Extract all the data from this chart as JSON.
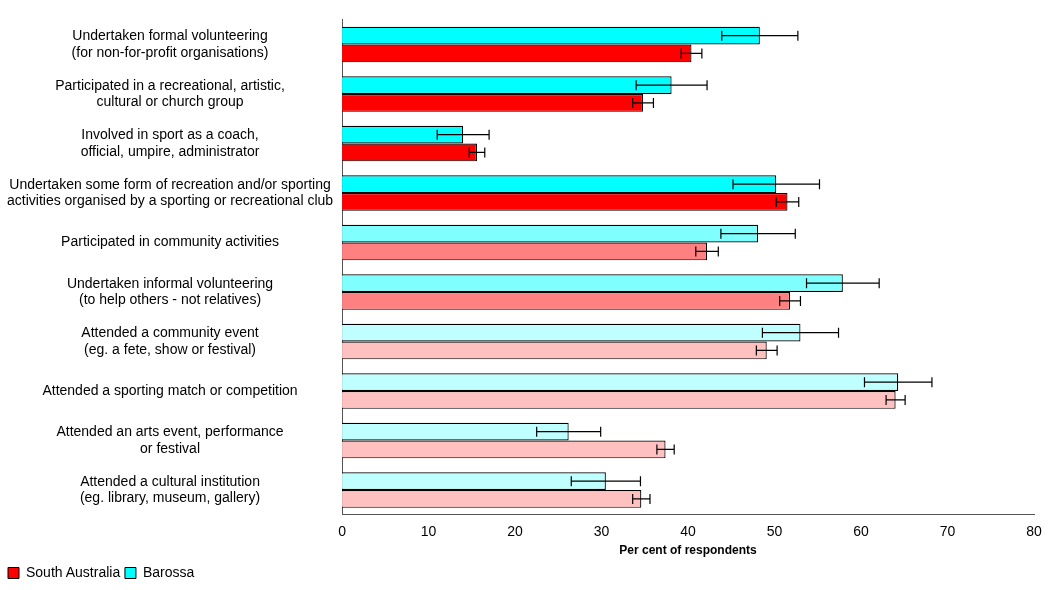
{
  "chart_data": {
    "type": "bar",
    "orientation": "horizontal",
    "xlabel": "Per cent of respondents",
    "categories": [
      "Undertaken formal volunteering\n(for non-for-profit organisations)",
      "Participated in a recreational, artistic,\ncultural or church group",
      "Involved in sport as a coach,\nofficial, umpire, administrator",
      "Undertaken some form of recreation and/or sporting\nactivities organised by a sporting or recreational club",
      "Participated in community activities",
      "Undertaken informal volunteering\n(to help others - not relatives)",
      "Attended a community event\n(eg. a fete, show or festival)",
      "Attended a sporting match or competition",
      "Attended an arts event, performance\nor festival",
      "Attended a cultural institution\n(eg. library, museum, gallery)"
    ],
    "series": [
      {
        "name": "Barossa",
        "color": "#00ffff",
        "colors": [
          "#00ffff",
          "#00ffff",
          "#00ffff",
          "#00ffff",
          "#80ffff",
          "#80ffff",
          "#c0ffff",
          "#c0ffff",
          "#c0ffff",
          "#c0ffff"
        ],
        "values": [
          48.3,
          38.1,
          14.0,
          50.2,
          48.1,
          57.9,
          53.0,
          64.3,
          26.2,
          30.5
        ],
        "errors": [
          4.4,
          4.1,
          3.0,
          5.0,
          4.3,
          4.2,
          4.4,
          3.9,
          3.7,
          4.0
        ]
      },
      {
        "name": "South Australia",
        "color": "#ff0000",
        "colors": [
          "#ff0000",
          "#ff0000",
          "#ff0000",
          "#ff0000",
          "#ff8080",
          "#ff8080",
          "#ffc0c0",
          "#ffc0c0",
          "#ffc0c0",
          "#ffc0c0"
        ],
        "values": [
          40.4,
          34.8,
          15.6,
          51.5,
          42.2,
          51.8,
          49.1,
          64.0,
          37.4,
          34.6
        ],
        "errors": [
          1.2,
          1.2,
          0.9,
          1.3,
          1.3,
          1.2,
          1.2,
          1.1,
          1.0,
          1.0
        ]
      }
    ],
    "xlim": [
      0,
      80
    ],
    "xticks": [
      0,
      10,
      20,
      30,
      40,
      50,
      60,
      70,
      80
    ],
    "grid": false,
    "legend": "bottom left"
  }
}
